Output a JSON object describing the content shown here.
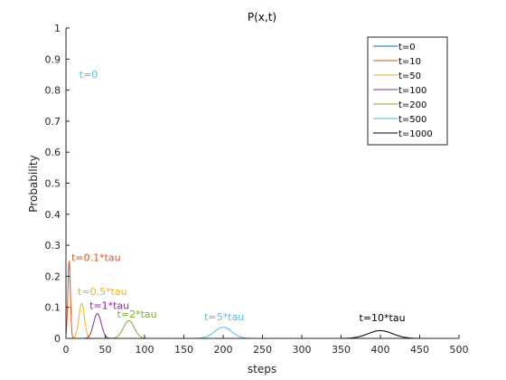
{
  "chart_data": {
    "type": "line",
    "title": "P(x,t)",
    "xlabel": "steps",
    "ylabel": "Probability",
    "xlim": [
      0,
      500
    ],
    "ylim": [
      0,
      1
    ],
    "x_ticks": [
      0,
      50,
      100,
      150,
      200,
      250,
      300,
      350,
      400,
      450,
      500
    ],
    "y_ticks": [
      0,
      0.1,
      0.2,
      0.3,
      0.4,
      0.5,
      0.6,
      0.7,
      0.8,
      0.9,
      1
    ],
    "grid": false,
    "legend_position": "top-right",
    "series": [
      {
        "name": "t=0",
        "color": "#0072BD",
        "peak_x": 0,
        "peak_y": 1.0,
        "sigma": 0
      },
      {
        "name": "t=10",
        "color": "#D95319",
        "peak_x": 4,
        "peak_y": 0.25,
        "sigma": 1.6
      },
      {
        "name": "t=50",
        "color": "#EDB120",
        "peak_x": 20,
        "peak_y": 0.113,
        "sigma": 3.5
      },
      {
        "name": "t=100",
        "color": "#7E2F8E",
        "peak_x": 40,
        "peak_y": 0.08,
        "sigma": 4.9
      },
      {
        "name": "t=200",
        "color": "#77AC30",
        "peak_x": 80,
        "peak_y": 0.057,
        "sigma": 6.9
      },
      {
        "name": "t=500",
        "color": "#4DBEEE",
        "peak_x": 200,
        "peak_y": 0.036,
        "sigma": 11
      },
      {
        "name": "t=1000",
        "color": "#000000",
        "peak_x": 400,
        "peak_y": 0.025,
        "sigma": 15.5
      }
    ],
    "annotations": [
      {
        "text": "t=0",
        "x": 17,
        "y": 0.84,
        "color": "#4DBEEE"
      },
      {
        "text": "t=0.1*tau",
        "x": 7,
        "y": 0.25,
        "color": "#D95319"
      },
      {
        "text": "t=0.5*tau",
        "x": 15,
        "y": 0.14,
        "color": "#EDB120"
      },
      {
        "text": "t=1*tau",
        "x": 30,
        "y": 0.095,
        "color": "#7E2F8E"
      },
      {
        "text": "t=2*tau",
        "x": 65,
        "y": 0.067,
        "color": "#77AC30"
      },
      {
        "text": "t=5*tau",
        "x": 176,
        "y": 0.058,
        "color": "#4DBEEE"
      },
      {
        "text": "t=10*tau",
        "x": 373,
        "y": 0.055,
        "color": "#000000"
      }
    ]
  }
}
